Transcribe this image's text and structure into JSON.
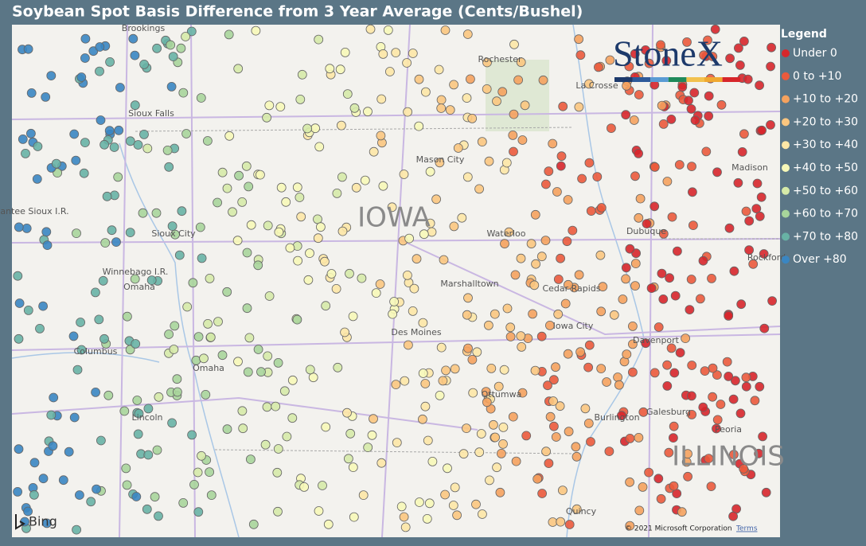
{
  "title": "Soybean Spot Basis Difference from 3 Year Average (Cents/Bushel)",
  "legend": {
    "title": "Legend",
    "entries": [
      {
        "label": "Under 0",
        "color": "#d7262b"
      },
      {
        "label": "0 to +10",
        "color": "#eb5a3c"
      },
      {
        "label": "+10 to +20",
        "color": "#f5a25e"
      },
      {
        "label": "+20 to +30",
        "color": "#fbc67f"
      },
      {
        "label": "+30 to +40",
        "color": "#fde7a6"
      },
      {
        "label": "+40 to +50",
        "color": "#f7f8b8"
      },
      {
        "label": "+50 to +60",
        "color": "#d6eaa8"
      },
      {
        "label": "+60 to +70",
        "color": "#a8d59b"
      },
      {
        "label": "+70 to +80",
        "color": "#68b2a5"
      },
      {
        "label": "Over +80",
        "color": "#3a86c2"
      }
    ]
  },
  "logo": "StoneX",
  "map": {
    "places": [
      "Brookings",
      "Rochester",
      "La Crosse",
      "Sioux Falls",
      "Mason City",
      "Madison",
      "Santee Sioux I.R.",
      "IOWA",
      "Waterloo",
      "Dubuque",
      "Sioux City",
      "Winnebago I.R.",
      "Omaha",
      "Marshalltown",
      "Cedar Rapids",
      "Rockford",
      "Iowa City",
      "Davenport",
      "Columbus",
      "Des Moines",
      "Omaha",
      "Ottumwa",
      "Galesburg",
      "Burlington",
      "Lincoln",
      "Peoria",
      "ILLINOIS",
      "Quincy"
    ],
    "provider": "Bing",
    "copyright": "© 2021 Microsoft Corporation",
    "terms": "Terms"
  }
}
